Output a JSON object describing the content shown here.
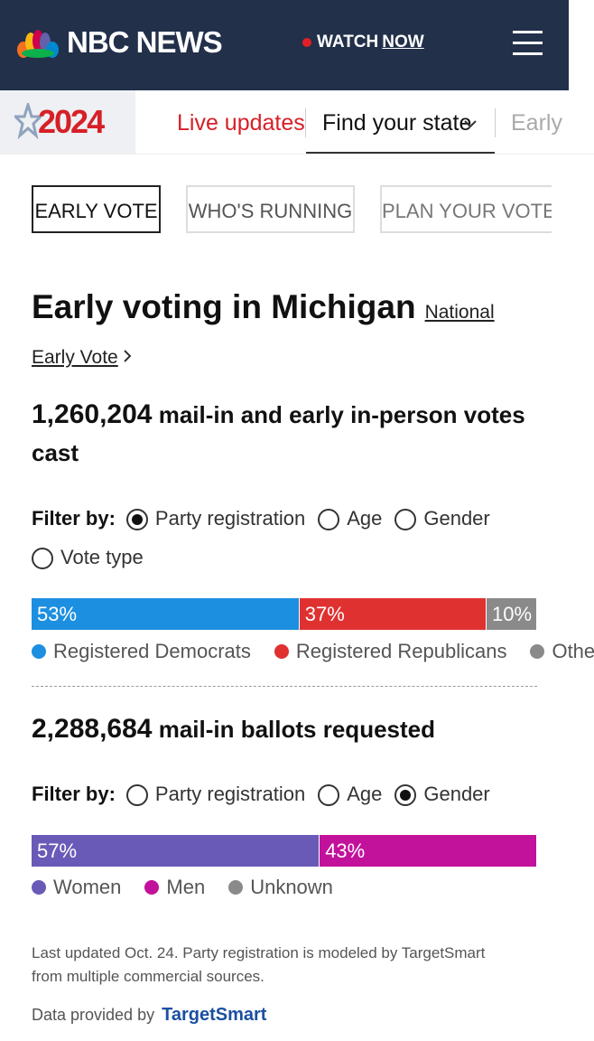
{
  "header": {
    "logo": "NBC NEWS",
    "watch": "WATCH",
    "now": "NOW"
  },
  "nav": {
    "year": "2024",
    "links": [
      "Live updates",
      "Find your state",
      "Early"
    ]
  },
  "tabs": [
    "EARLY VOTE",
    "WHO'S RUNNING",
    "PLAN YOUR VOTE"
  ],
  "title": "Early voting in Michigan",
  "title_link": "National Early Vote",
  "sections": [
    {
      "count": "1,260,204",
      "count_text": "mail-in and early in-person votes cast",
      "filter_label": "Filter by:",
      "filters": [
        "Party registration",
        "Age",
        "Gender",
        "Vote type"
      ],
      "selected_filter": 0,
      "series": [
        {
          "name": "Registered Democrats",
          "color": "#1d8fe0",
          "value": 53,
          "value_label": "53%"
        },
        {
          "name": "Registered Republicans",
          "color": "#e03131",
          "value": 37,
          "value_label": "37%"
        },
        {
          "name": "Other",
          "color": "#8a8a8a",
          "value": 10,
          "value_label": "10%"
        }
      ]
    },
    {
      "count": "2,288,684",
      "count_text": "mail-in ballots requested",
      "filter_label": "Filter by:",
      "filters": [
        "Party registration",
        "Age",
        "Gender"
      ],
      "selected_filter": 2,
      "series": [
        {
          "name": "Women",
          "color": "#6a5ab8",
          "value": 57,
          "value_label": "57%"
        },
        {
          "name": "Men",
          "color": "#c2119a",
          "value": 43,
          "value_label": "43%"
        },
        {
          "name": "Unknown",
          "color": "#8a8a8a",
          "value": 0
        }
      ]
    }
  ],
  "footnote": "Last updated Oct. 24. Party registration is modeled by TargetSmart from multiple commercial sources.",
  "provider_label": "Data provided by",
  "provider": "TargetSmart"
}
